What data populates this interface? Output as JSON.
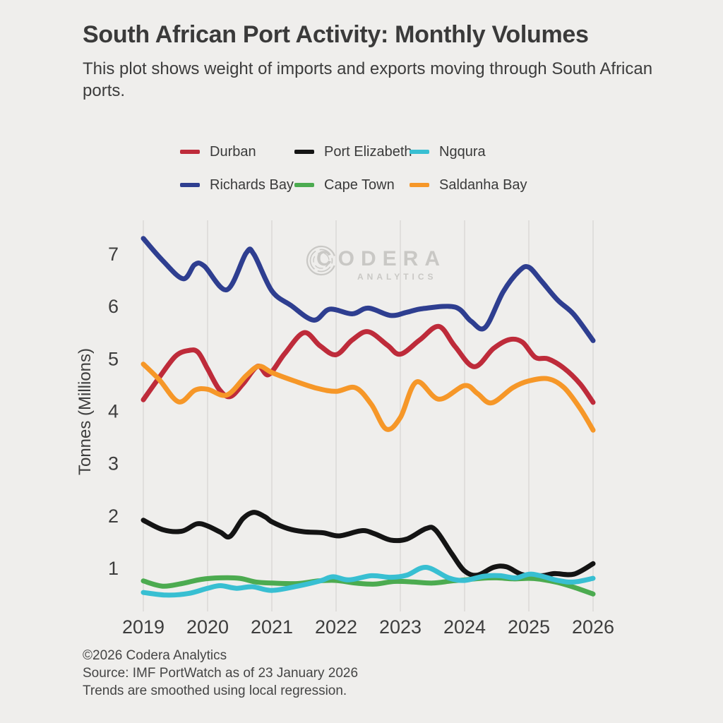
{
  "header": {
    "title": "South African Port Activity: Monthly Volumes",
    "subtitle": "This plot shows weight of imports and exports moving through South African ports."
  },
  "watermark": {
    "brand": "CODERA",
    "tagline": "ANALYTICS"
  },
  "legend": {
    "items": [
      {
        "label": "Durban",
        "color": "#be2b3a"
      },
      {
        "label": "Port Elizabeth",
        "color": "#141414"
      },
      {
        "label": "Ngqura",
        "color": "#38bfd2"
      },
      {
        "label": "Richards Bay",
        "color": "#2e3e90"
      },
      {
        "label": "Cape Town",
        "color": "#4cab50"
      },
      {
        "label": "Saldanha Bay",
        "color": "#f69728"
      }
    ]
  },
  "chart_data": {
    "type": "line",
    "title": "South African Port Activity: Monthly Volumes",
    "xlabel": "",
    "ylabel": "Tonnes (Millions)",
    "x_ticks": [
      2019,
      2020,
      2021,
      2022,
      2023,
      2024,
      2025,
      2026
    ],
    "y_ticks": [
      1,
      2,
      3,
      4,
      5,
      6,
      7
    ],
    "xlim": [
      2019,
      2026
    ],
    "ylim": [
      0.3,
      7.45
    ],
    "grid": "vertical-only",
    "legend_position": "top",
    "series": [
      {
        "name": "Durban",
        "color": "#be2b3a",
        "x": [
          2019.0,
          2019.25,
          2019.5,
          2019.7,
          2019.85,
          2020.0,
          2020.18,
          2020.35,
          2020.55,
          2020.78,
          2020.95,
          2021.2,
          2021.5,
          2021.75,
          2022.0,
          2022.25,
          2022.5,
          2022.8,
          2023.0,
          2023.3,
          2023.6,
          2023.85,
          2024.15,
          2024.45,
          2024.7,
          2024.9,
          2025.1,
          2025.3,
          2025.55,
          2025.8,
          2026.0
        ],
        "y": [
          4.22,
          4.65,
          5.05,
          5.16,
          5.13,
          4.81,
          4.42,
          4.28,
          4.52,
          4.86,
          4.7,
          5.1,
          5.5,
          5.25,
          5.08,
          5.36,
          5.52,
          5.26,
          5.09,
          5.36,
          5.62,
          5.24,
          4.85,
          5.2,
          5.37,
          5.32,
          5.03,
          5.0,
          4.82,
          4.52,
          4.17
        ]
      },
      {
        "name": "Richards Bay",
        "color": "#2e3e90",
        "x": [
          2019.0,
          2019.3,
          2019.62,
          2019.8,
          2019.95,
          2020.3,
          2020.6,
          2020.72,
          2021.0,
          2021.3,
          2021.65,
          2021.9,
          2022.25,
          2022.5,
          2022.85,
          2023.1,
          2023.35,
          2023.85,
          2024.1,
          2024.32,
          2024.6,
          2024.85,
          2025.0,
          2025.2,
          2025.45,
          2025.7,
          2026.0
        ],
        "y": [
          7.3,
          6.88,
          6.53,
          6.8,
          6.77,
          6.32,
          7.02,
          7.0,
          6.3,
          6.02,
          5.74,
          5.95,
          5.86,
          5.97,
          5.83,
          5.89,
          5.96,
          5.99,
          5.72,
          5.6,
          6.28,
          6.68,
          6.75,
          6.48,
          6.12,
          5.85,
          5.35
        ]
      },
      {
        "name": "Port Elizabeth",
        "color": "#141414",
        "x": [
          2019.0,
          2019.3,
          2019.6,
          2019.83,
          2020.0,
          2020.2,
          2020.35,
          2020.55,
          2020.72,
          2020.9,
          2021.0,
          2021.25,
          2021.5,
          2021.8,
          2022.05,
          2022.4,
          2022.6,
          2022.85,
          2023.1,
          2023.4,
          2023.55,
          2023.8,
          2024.0,
          2024.2,
          2024.45,
          2024.65,
          2024.9,
          2025.2,
          2025.4,
          2025.7,
          2026.0
        ],
        "y": [
          1.92,
          1.74,
          1.71,
          1.85,
          1.81,
          1.69,
          1.61,
          1.95,
          2.07,
          1.98,
          1.89,
          1.76,
          1.7,
          1.68,
          1.62,
          1.72,
          1.66,
          1.54,
          1.56,
          1.76,
          1.73,
          1.28,
          0.95,
          0.87,
          1.02,
          1.03,
          0.88,
          0.86,
          0.9,
          0.89,
          1.09
        ]
      },
      {
        "name": "Cape Town",
        "color": "#4cab50",
        "x": [
          2019.0,
          2019.3,
          2019.6,
          2019.9,
          2020.2,
          2020.5,
          2020.75,
          2021.0,
          2021.4,
          2021.72,
          2022.0,
          2022.3,
          2022.6,
          2022.9,
          2023.2,
          2023.5,
          2023.8,
          2024.0,
          2024.25,
          2024.5,
          2024.75,
          2025.0,
          2025.2,
          2025.45,
          2025.7,
          2026.0
        ],
        "y": [
          0.76,
          0.66,
          0.71,
          0.79,
          0.82,
          0.81,
          0.74,
          0.72,
          0.71,
          0.76,
          0.77,
          0.72,
          0.7,
          0.75,
          0.74,
          0.72,
          0.76,
          0.78,
          0.81,
          0.82,
          0.8,
          0.81,
          0.79,
          0.73,
          0.64,
          0.51
        ]
      },
      {
        "name": "Ngqura",
        "color": "#38bfd2",
        "x": [
          2019.0,
          2019.35,
          2019.7,
          2020.0,
          2020.2,
          2020.45,
          2020.7,
          2021.0,
          2021.4,
          2021.75,
          2021.95,
          2022.2,
          2022.55,
          2022.85,
          2023.1,
          2023.4,
          2023.75,
          2024.0,
          2024.3,
          2024.55,
          2024.8,
          2025.05,
          2025.45,
          2025.7,
          2026.0
        ],
        "y": [
          0.54,
          0.49,
          0.52,
          0.62,
          0.67,
          0.62,
          0.65,
          0.58,
          0.66,
          0.76,
          0.84,
          0.78,
          0.86,
          0.83,
          0.87,
          1.02,
          0.82,
          0.77,
          0.85,
          0.86,
          0.82,
          0.89,
          0.77,
          0.74,
          0.81
        ]
      },
      {
        "name": "Saldanha Bay",
        "color": "#f69728",
        "x": [
          2019.0,
          2019.25,
          2019.55,
          2019.8,
          2020.0,
          2020.3,
          2020.6,
          2020.8,
          2021.0,
          2021.35,
          2021.7,
          2022.0,
          2022.3,
          2022.55,
          2022.78,
          2023.0,
          2023.25,
          2023.6,
          2024.0,
          2024.2,
          2024.42,
          2024.75,
          2025.0,
          2025.3,
          2025.55,
          2025.8,
          2026.0
        ],
        "y": [
          4.9,
          4.6,
          4.18,
          4.4,
          4.42,
          4.31,
          4.68,
          4.86,
          4.74,
          4.58,
          4.44,
          4.38,
          4.45,
          4.13,
          3.66,
          3.88,
          4.56,
          4.23,
          4.49,
          4.34,
          4.16,
          4.45,
          4.58,
          4.62,
          4.45,
          4.05,
          3.64
        ]
      }
    ]
  },
  "footer": {
    "lines": [
      "©2026 Codera Analytics",
      "Source: IMF PortWatch as of 23 January 2026",
      "Trends are smoothed using local regression."
    ]
  }
}
